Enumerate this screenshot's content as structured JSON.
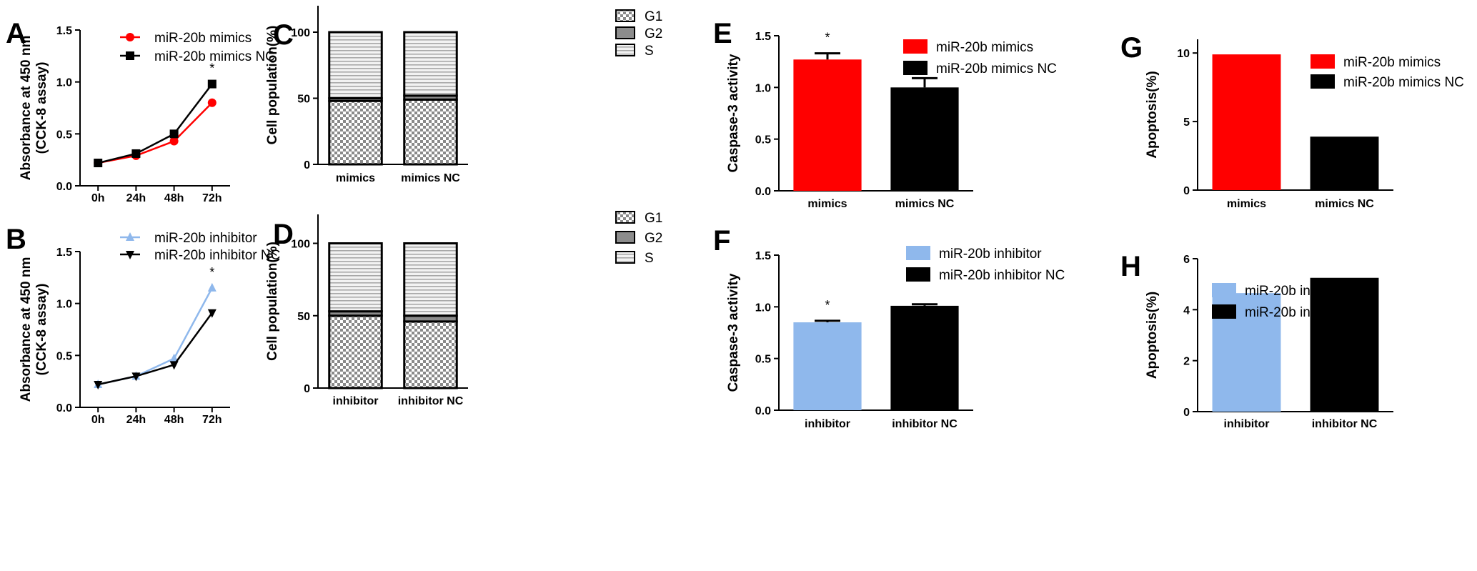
{
  "panels": [
    {
      "letter": "A",
      "type": "line",
      "categories": [
        "0h",
        "24h",
        "48h",
        "72h"
      ],
      "ylabel": [
        "Absorbance at 450 nm",
        "(CCK-8 assay)"
      ],
      "ylim": [
        0,
        1.5
      ],
      "yticks": [
        "0.0",
        "0.5",
        "1.0",
        "1.5"
      ],
      "legend_position": "top-left",
      "annotations": [
        {
          "category": "72h",
          "text": "*"
        }
      ],
      "series": [
        {
          "name": "miR-20b mimics",
          "color": "#ff0000",
          "marker": "circle",
          "values": [
            0.22,
            0.29,
            0.43,
            0.8
          ]
        },
        {
          "name": "miR-20b mimics NC",
          "color": "#000000",
          "marker": "square",
          "values": [
            0.22,
            0.31,
            0.5,
            0.98
          ]
        }
      ]
    },
    {
      "letter": "B",
      "type": "line",
      "categories": [
        "0h",
        "24h",
        "48h",
        "72h"
      ],
      "ylabel": [
        "Absorbance at 450 nm",
        "(CCK-8 assay)"
      ],
      "ylim": [
        0,
        1.5
      ],
      "yticks": [
        "0.0",
        "0.5",
        "1.0",
        "1.5"
      ],
      "legend_position": "top-left",
      "annotations": [
        {
          "category": "72h",
          "text": "*"
        }
      ],
      "series": [
        {
          "name": "miR-20b inhibitor",
          "color": "#8fb8ec",
          "marker": "triangle-up",
          "values": [
            0.22,
            0.3,
            0.47,
            1.15
          ]
        },
        {
          "name": "miR-20b inhibitor NC",
          "color": "#000000",
          "marker": "triangle-down",
          "values": [
            0.22,
            0.3,
            0.41,
            0.91
          ]
        }
      ]
    },
    {
      "letter": "C",
      "type": "bar",
      "categories": [
        "mimics",
        "mimics NC"
      ],
      "ylabel": [
        "Cell population(%)"
      ],
      "ylim": [
        0,
        120
      ],
      "yticks": [
        "0",
        "50",
        "100"
      ],
      "legend_position": "top-right",
      "stacked": true,
      "series": [
        {
          "name": "G1",
          "pattern": "checker",
          "values": [
            48,
            49
          ]
        },
        {
          "name": "G2",
          "pattern": "gray",
          "values": [
            2,
            3
          ]
        },
        {
          "name": "S",
          "pattern": "hlines",
          "values": [
            50,
            48
          ]
        }
      ]
    },
    {
      "letter": "D",
      "type": "bar",
      "categories": [
        "inhibitor",
        "inhibitor NC"
      ],
      "ylabel": [
        "Cell population(%)"
      ],
      "ylim": [
        0,
        120
      ],
      "yticks": [
        "0",
        "50",
        "100"
      ],
      "legend_position": "top-right",
      "stacked": true,
      "series": [
        {
          "name": "G1",
          "pattern": "checker",
          "values": [
            50,
            46
          ]
        },
        {
          "name": "G2",
          "pattern": "gray",
          "values": [
            3,
            4
          ]
        },
        {
          "name": "S",
          "pattern": "hlines",
          "values": [
            47,
            50
          ]
        }
      ]
    },
    {
      "letter": "E",
      "type": "bar",
      "categories": [
        "mimics",
        "mimics NC"
      ],
      "ylabel": [
        "Caspase-3 activity"
      ],
      "ylim": [
        0,
        1.5
      ],
      "yticks": [
        "0.0",
        "0.5",
        "1.0",
        "1.5"
      ],
      "legend_position": "top-right",
      "annotations": [
        {
          "category": "mimics",
          "text": "*"
        }
      ],
      "series": [
        {
          "name": "miR-20b mimics",
          "color": "#ff0000",
          "values": [
            1.27
          ],
          "errors": [
            0.06
          ]
        },
        {
          "name": "miR-20b mimics NC",
          "color": "#000000",
          "values": [
            1.0
          ],
          "errors": [
            0.09
          ]
        }
      ]
    },
    {
      "letter": "F",
      "type": "bar",
      "categories": [
        "inhibitor",
        "inhibitor NC"
      ],
      "ylabel": [
        "Caspase-3 activity"
      ],
      "ylim": [
        0,
        1.5
      ],
      "yticks": [
        "0.0",
        "0.5",
        "1.0",
        "1.5"
      ],
      "legend_position": "top-right",
      "annotations": [
        {
          "category": "inhibitor",
          "text": "*"
        }
      ],
      "series": [
        {
          "name": "miR-20b inhibitor",
          "color": "#8fb8ec",
          "values": [
            0.85
          ],
          "errors": [
            0.015
          ]
        },
        {
          "name": "miR-20b inhibitor NC",
          "color": "#000000",
          "values": [
            1.01
          ],
          "errors": [
            0.015
          ]
        }
      ]
    },
    {
      "letter": "G",
      "type": "bar",
      "categories": [
        "mimics",
        "mimics NC"
      ],
      "ylabel": [
        "Apoptosis(%)"
      ],
      "ylim": [
        0,
        11
      ],
      "yticks": [
        "0",
        "5",
        "10"
      ],
      "legend_position": "top-right",
      "series": [
        {
          "name": "miR-20b mimics",
          "color": "#ff0000",
          "values": [
            9.9
          ]
        },
        {
          "name": "miR-20b mimics NC",
          "color": "#000000",
          "values": [
            3.9
          ]
        }
      ]
    },
    {
      "letter": "H",
      "type": "bar",
      "categories": [
        "inhibitor",
        "inhibitor NC"
      ],
      "ylabel": [
        "Apoptosis(%)"
      ],
      "ylim": [
        0,
        6
      ],
      "yticks": [
        "0",
        "2",
        "4",
        "6"
      ],
      "legend_position": "top-left",
      "series": [
        {
          "name": "miR-20b inhibitor",
          "color": "#8fb8ec",
          "values": [
            4.65
          ]
        },
        {
          "name": "miR-20b inhibitor NC",
          "color": "#000000",
          "values": [
            5.25
          ]
        }
      ]
    }
  ]
}
